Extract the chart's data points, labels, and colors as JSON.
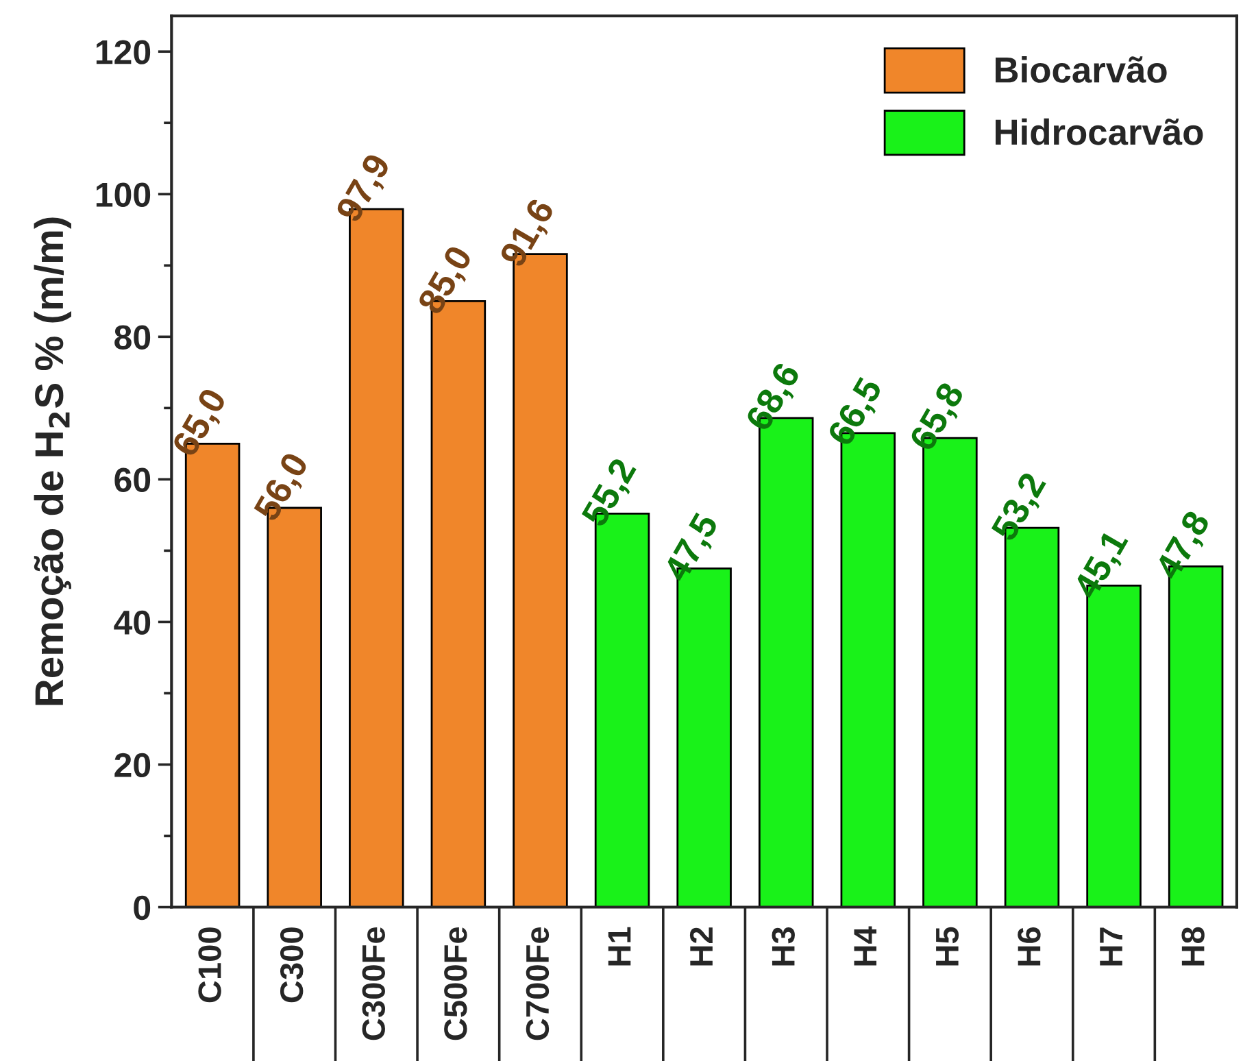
{
  "chart_data": {
    "type": "bar",
    "ylabel": "Remoção de H$_{2}$S % (m/m)",
    "categories": [
      "C100",
      "C300",
      "C300Fe",
      "C500Fe",
      "C700Fe",
      "H1",
      "H2",
      "H3",
      "H4",
      "H5",
      "H6",
      "H7",
      "H8"
    ],
    "series": [
      {
        "name": "Biocarvão",
        "color": "#f0862a",
        "values": [
          65.0,
          56.0,
          97.9,
          85.0,
          91.6,
          null,
          null,
          null,
          null,
          null,
          null,
          null,
          null
        ],
        "value_labels": [
          "65,0",
          "56,0",
          "97,9",
          "85,0",
          "91,6",
          null,
          null,
          null,
          null,
          null,
          null,
          null,
          null
        ]
      },
      {
        "name": "Hidrocarvão",
        "color": "#19f219",
        "values": [
          null,
          null,
          null,
          null,
          null,
          55.2,
          47.5,
          68.6,
          66.5,
          65.8,
          53.2,
          45.1,
          47.8
        ],
        "value_labels": [
          null,
          null,
          null,
          null,
          null,
          "55,2",
          "47,5",
          "68,6",
          "66,5",
          "65,8",
          "53,2",
          "45,1",
          "47,8"
        ]
      }
    ],
    "ylim": [
      0,
      125
    ],
    "yticks": [
      0,
      20,
      40,
      60,
      80,
      100,
      120
    ],
    "legend": "top right",
    "grid": false
  }
}
